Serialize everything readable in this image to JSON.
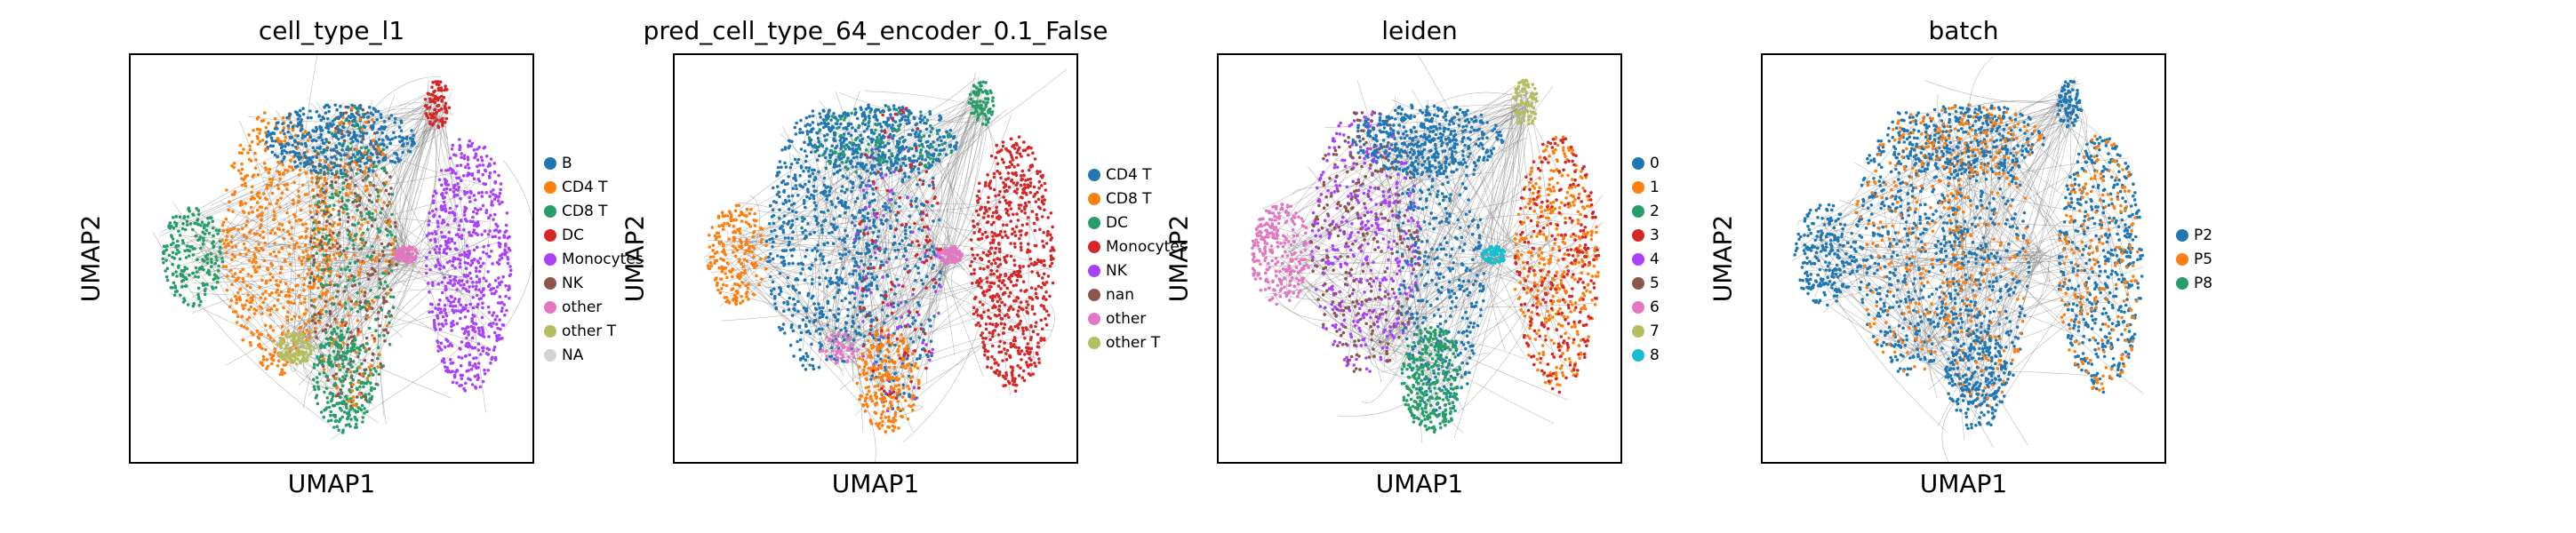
{
  "chart_data": [
    {
      "type": "scatter",
      "title": "cell_type_l1",
      "xlabel": "UMAP1",
      "ylabel": "UMAP2",
      "grid": false,
      "legend_position": "right",
      "categories": [
        {
          "name": "B",
          "color": "#1f77b4"
        },
        {
          "name": "CD4 T",
          "color": "#ff7f0e"
        },
        {
          "name": "CD8 T",
          "color": "#279e68"
        },
        {
          "name": "DC",
          "color": "#d62728"
        },
        {
          "name": "Monocytes",
          "color": "#aa40fc"
        },
        {
          "name": "NK",
          "color": "#8c564b"
        },
        {
          "name": "other",
          "color": "#e377c2"
        },
        {
          "name": "other T",
          "color": "#b5bd61"
        },
        {
          "name": "NA",
          "color": "#d3d3d3"
        }
      ]
    },
    {
      "type": "scatter",
      "title": "pred_cell_type_64_encoder_0.1_False",
      "xlabel": "UMAP1",
      "ylabel": "UMAP2",
      "grid": false,
      "legend_position": "right",
      "categories": [
        {
          "name": "CD4 T",
          "color": "#1f77b4"
        },
        {
          "name": "CD8 T",
          "color": "#ff7f0e"
        },
        {
          "name": "DC",
          "color": "#279e68"
        },
        {
          "name": "Monocytes",
          "color": "#d62728"
        },
        {
          "name": "NK",
          "color": "#aa40fc"
        },
        {
          "name": "nan",
          "color": "#8c564b"
        },
        {
          "name": "other",
          "color": "#e377c2"
        },
        {
          "name": "other T",
          "color": "#b5bd61"
        }
      ]
    },
    {
      "type": "scatter",
      "title": "leiden",
      "xlabel": "UMAP1",
      "ylabel": "UMAP2",
      "grid": false,
      "legend_position": "right",
      "categories": [
        {
          "name": "0",
          "color": "#1f77b4"
        },
        {
          "name": "1",
          "color": "#ff7f0e"
        },
        {
          "name": "2",
          "color": "#279e68"
        },
        {
          "name": "3",
          "color": "#d62728"
        },
        {
          "name": "4",
          "color": "#aa40fc"
        },
        {
          "name": "5",
          "color": "#8c564b"
        },
        {
          "name": "6",
          "color": "#e377c2"
        },
        {
          "name": "7",
          "color": "#b5bd61"
        },
        {
          "name": "8",
          "color": "#17becf"
        }
      ]
    },
    {
      "type": "scatter",
      "title": "batch",
      "xlabel": "UMAP1",
      "ylabel": "UMAP2",
      "grid": false,
      "legend_position": "right",
      "categories": [
        {
          "name": "P2",
          "color": "#1f77b4"
        },
        {
          "name": "P5",
          "color": "#ff7f0e"
        },
        {
          "name": "P8",
          "color": "#279e68"
        }
      ]
    }
  ]
}
